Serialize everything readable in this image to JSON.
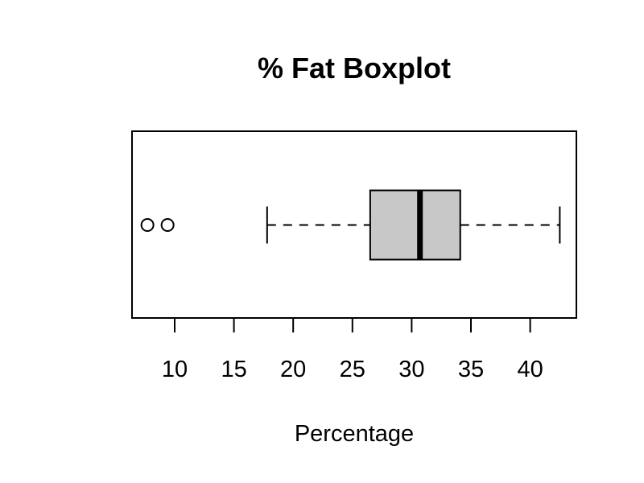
{
  "chart_data": {
    "type": "boxplot",
    "orientation": "horizontal",
    "title": "% Fat Boxplot",
    "xlabel": "Percentage",
    "ylabel": "",
    "xlim": [
      6.4,
      43.9
    ],
    "ticks": [
      10,
      15,
      20,
      25,
      30,
      35,
      40
    ],
    "grid": false,
    "box": {
      "whisker_low": 17.8,
      "q1": 26.5,
      "median": 30.7,
      "q3": 34.1,
      "whisker_high": 42.5,
      "outliers": [
        7.7,
        9.4
      ]
    },
    "colors": {
      "box_fill": "#c8c8c8",
      "stroke": "#000000"
    }
  }
}
